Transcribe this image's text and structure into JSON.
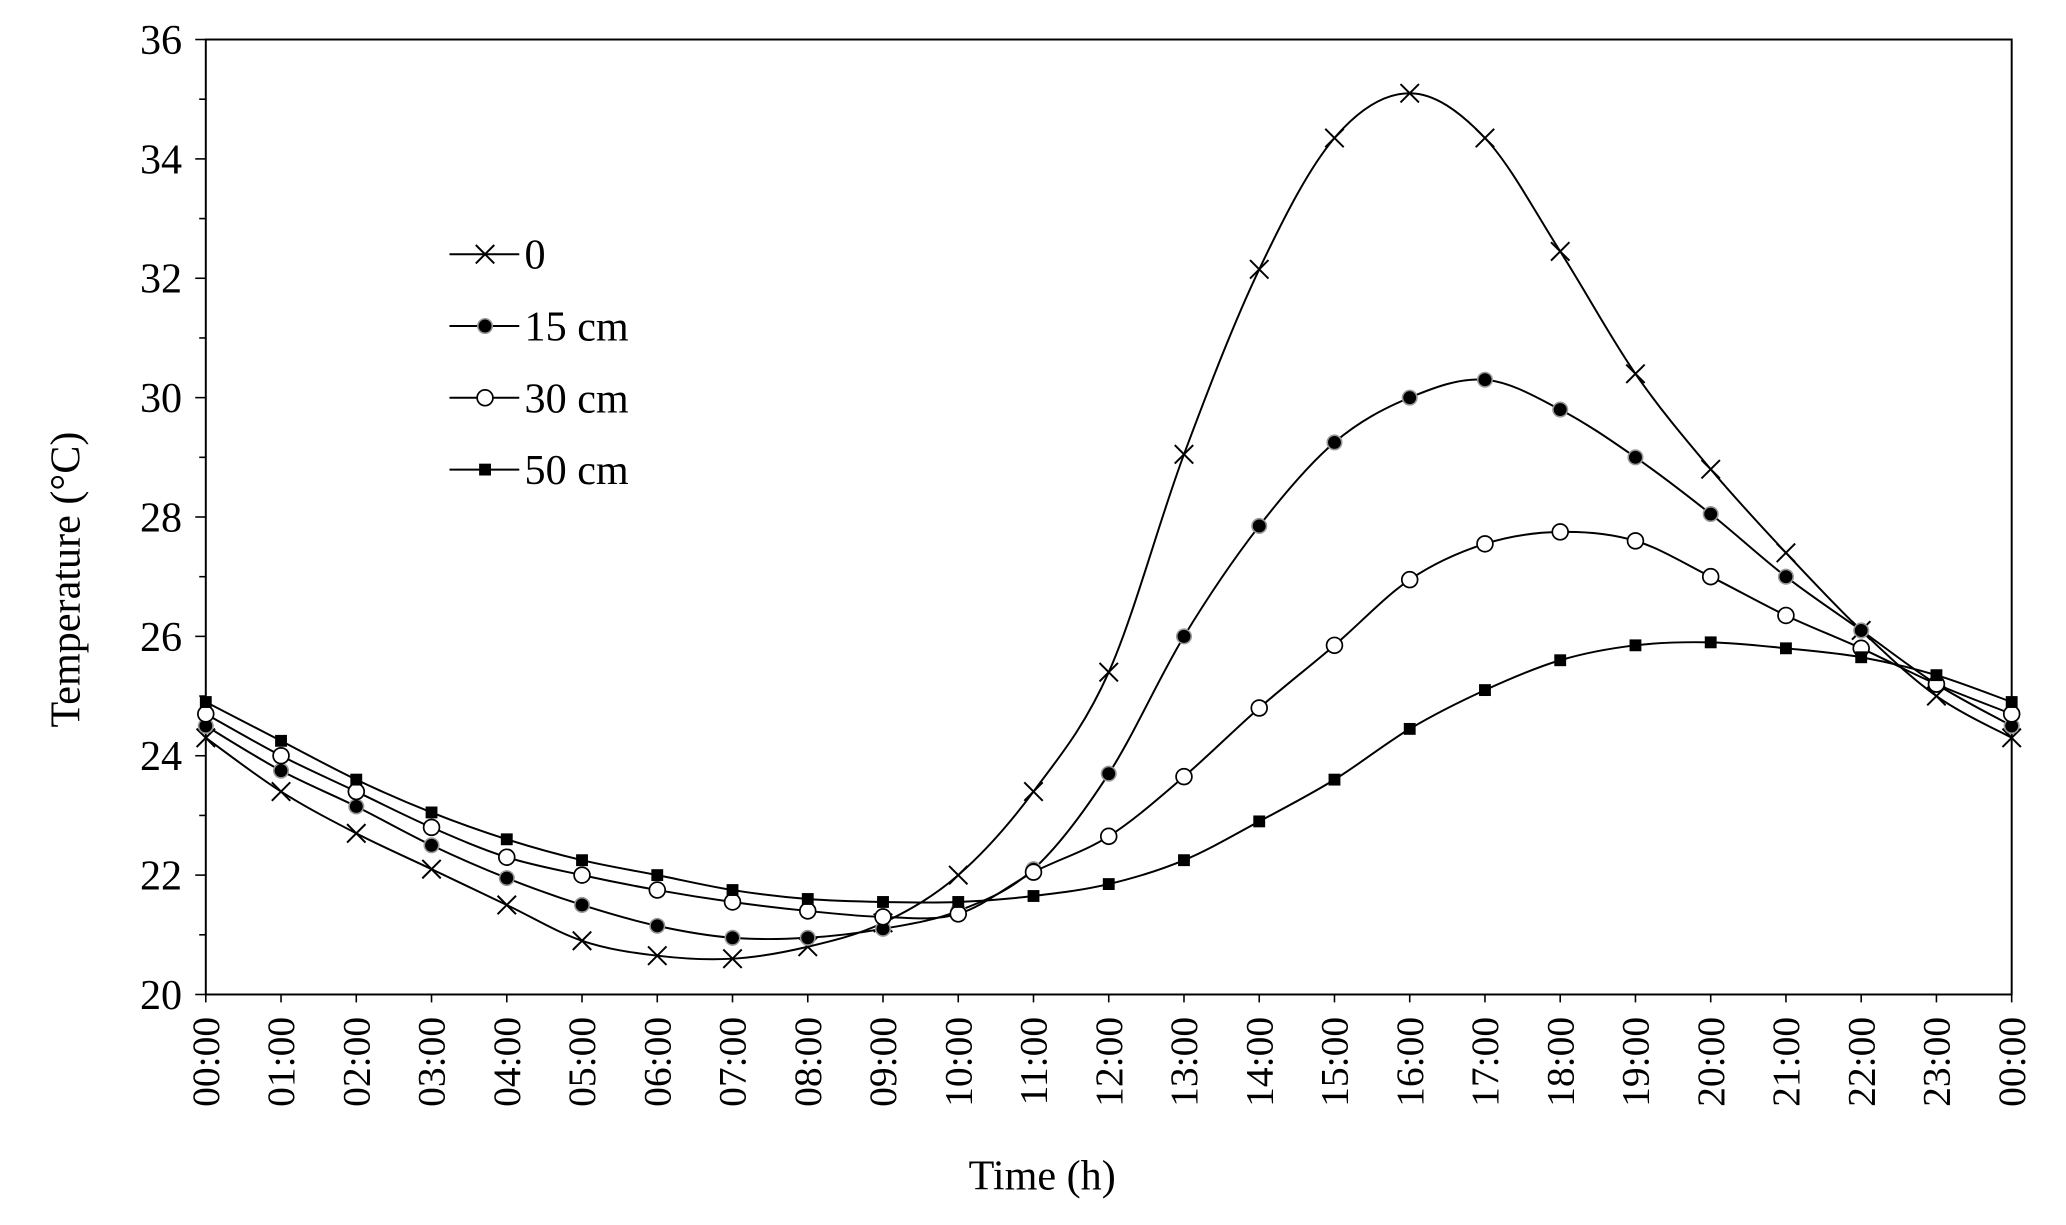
{
  "chart_data": {
    "type": "line",
    "title": "",
    "xlabel": "Time (h)",
    "ylabel": "Temperature (°C)",
    "ylim": [
      20,
      36
    ],
    "yticks": [
      "20",
      "22",
      "24",
      "26",
      "28",
      "30",
      "32",
      "34",
      "36"
    ],
    "grid": false,
    "legend_position": "top-left",
    "categories": [
      "00:00",
      "01:00",
      "02:00",
      "03:00",
      "04:00",
      "05:00",
      "06:00",
      "07:00",
      "08:00",
      "09:00",
      "10:00",
      "11:00",
      "12:00",
      "13:00",
      "14:00",
      "15:00",
      "16:00",
      "17:00",
      "18:00",
      "19:00",
      "20:00",
      "21:00",
      "22:00",
      "23:00",
      "00:00"
    ],
    "series": [
      {
        "name": "0",
        "marker": "x",
        "values": [
          24.3,
          23.4,
          22.7,
          22.1,
          21.5,
          20.9,
          20.65,
          20.6,
          20.8,
          21.2,
          22.0,
          23.4,
          25.4,
          29.05,
          32.15,
          34.35,
          35.1,
          34.35,
          32.45,
          30.4,
          28.8,
          27.4,
          26.1,
          25.0,
          24.3
        ]
      },
      {
        "name": "15 cm",
        "marker": "filled-circle",
        "values": [
          24.5,
          23.75,
          23.15,
          22.5,
          21.95,
          21.5,
          21.15,
          20.95,
          20.95,
          21.1,
          21.4,
          22.1,
          23.7,
          26.0,
          27.85,
          29.25,
          30.0,
          30.3,
          29.8,
          29.0,
          28.05,
          27.0,
          26.1,
          25.2,
          24.5
        ]
      },
      {
        "name": "30 cm",
        "marker": "open-circle",
        "values": [
          24.7,
          24.0,
          23.4,
          22.8,
          22.3,
          22.0,
          21.75,
          21.55,
          21.4,
          21.3,
          21.35,
          22.05,
          22.65,
          23.65,
          24.8,
          25.85,
          26.95,
          27.55,
          27.75,
          27.6,
          27.0,
          26.35,
          25.8,
          25.2,
          24.7
        ]
      },
      {
        "name": "50 cm",
        "marker": "filled-square",
        "values": [
          24.9,
          24.25,
          23.6,
          23.05,
          22.6,
          22.25,
          22.0,
          21.75,
          21.6,
          21.55,
          21.55,
          21.65,
          21.85,
          22.25,
          22.9,
          23.6,
          24.45,
          25.1,
          25.6,
          25.85,
          25.9,
          25.8,
          25.65,
          25.35,
          24.9
        ]
      }
    ]
  }
}
